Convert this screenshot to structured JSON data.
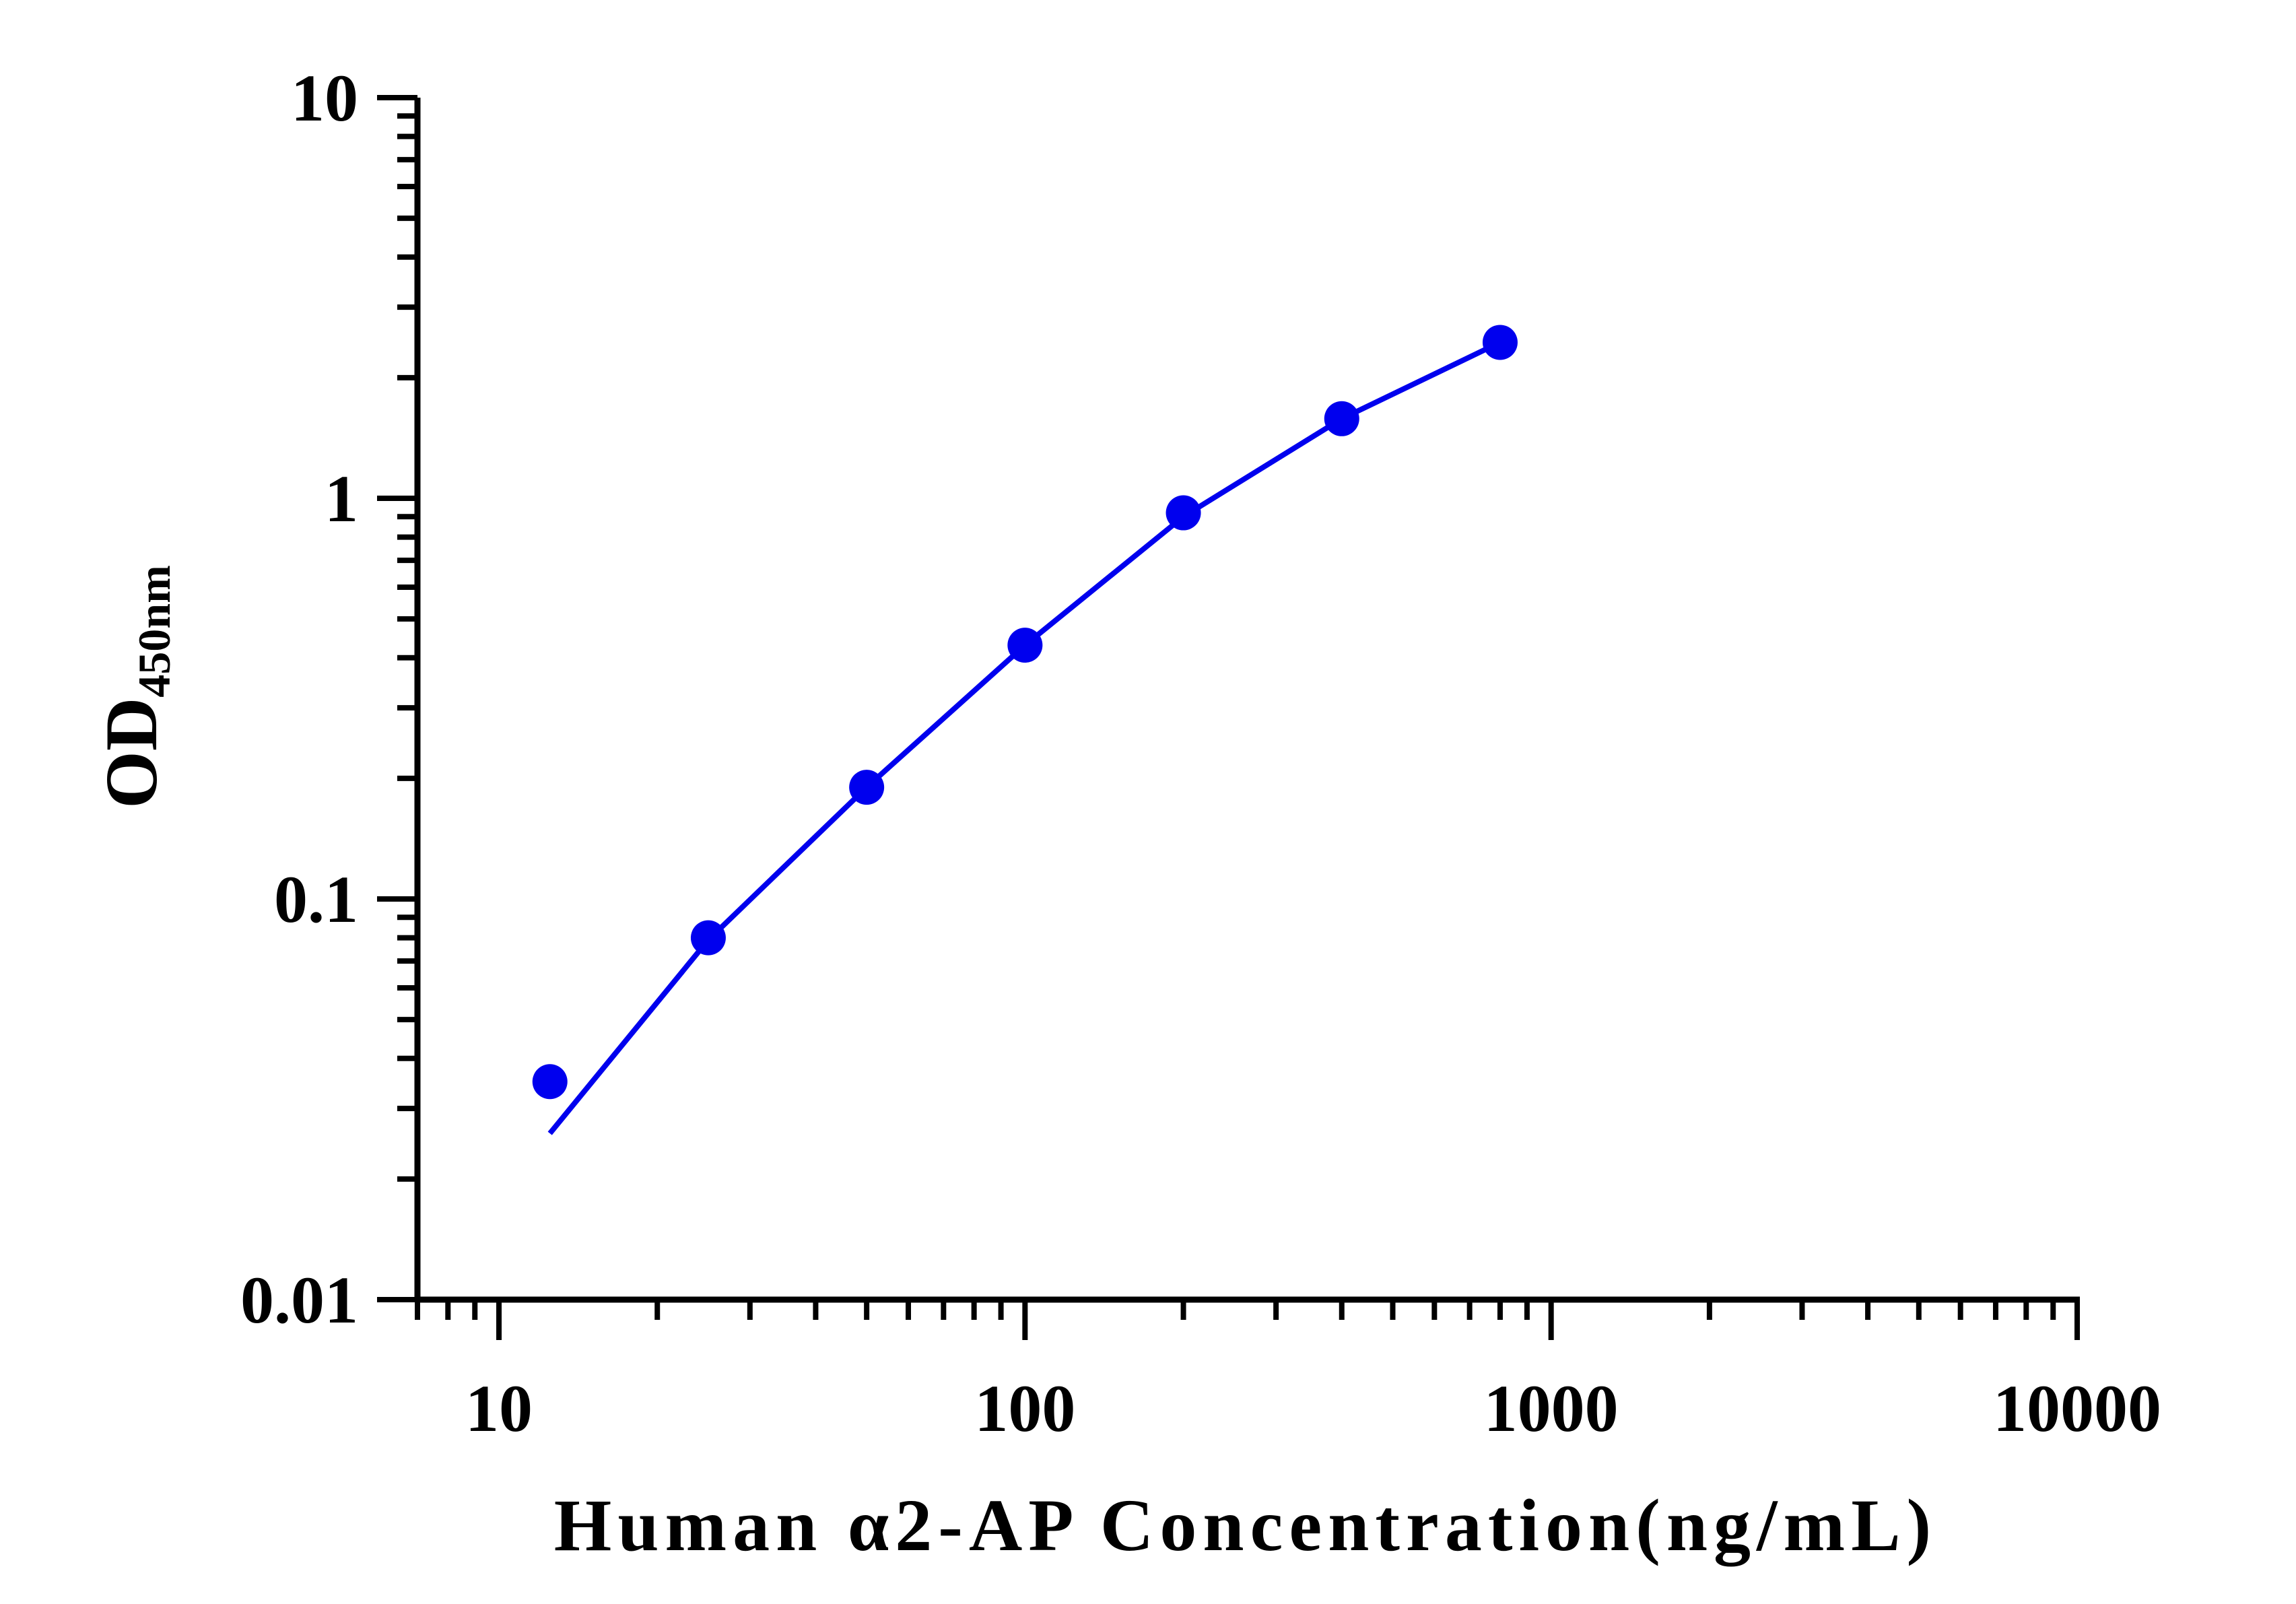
{
  "chart_data": {
    "type": "line",
    "xlabel": "Human α2-AP Concentration(ng/mL)",
    "ylabel": "OD",
    "ylabel_subscript": "450nm",
    "x_scale": "log",
    "y_scale": "log",
    "xlim": [
      7,
      10000
    ],
    "ylim": [
      0.01,
      10
    ],
    "x_ticks": [
      10,
      100,
      1000,
      10000
    ],
    "x_tick_labels": [
      "10",
      "100",
      "1000",
      "10000"
    ],
    "y_ticks": [
      0.01,
      0.1,
      1,
      10
    ],
    "y_tick_labels": [
      "0.01",
      "0.1",
      "1",
      "10"
    ],
    "grid": false,
    "legend": "none",
    "series": [
      {
        "x": [
          12.5,
          25,
          50,
          100,
          200,
          400,
          800
        ],
        "y": [
          0.035,
          0.08,
          0.19,
          0.43,
          0.92,
          1.58,
          2.45
        ],
        "color": "#0000ee",
        "marker": "circle"
      }
    ],
    "fit_curve": {
      "x": [
        12.5,
        25,
        50,
        100,
        200,
        400,
        800
      ],
      "y": [
        0.026,
        0.079,
        0.19,
        0.43,
        0.9,
        1.58,
        2.45
      ],
      "color": "#0000ee"
    }
  }
}
